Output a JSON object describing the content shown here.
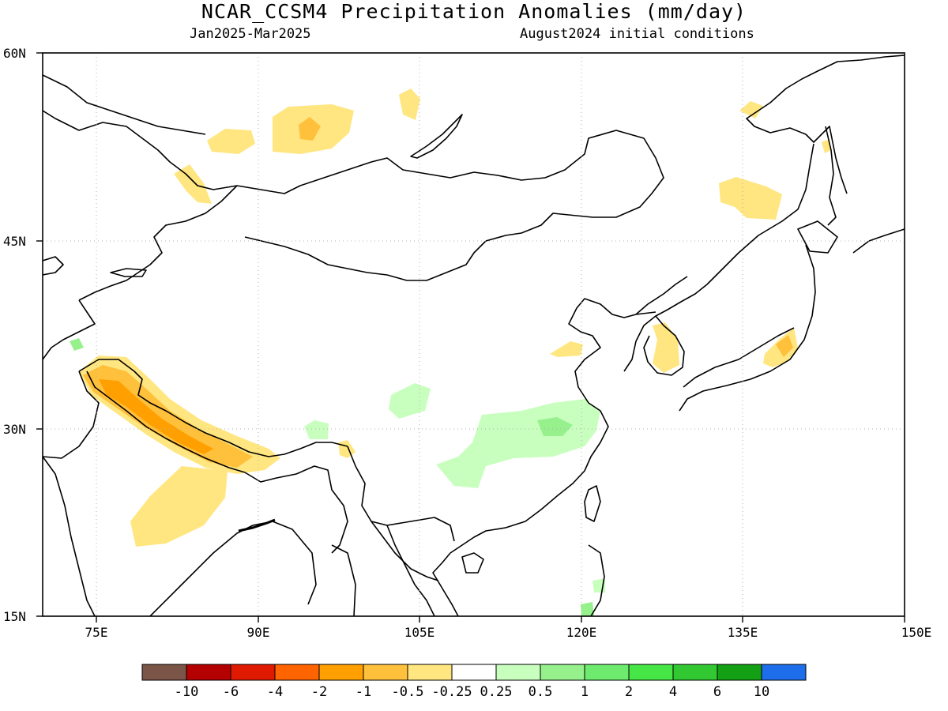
{
  "title": "NCAR_CCSM4 Precipitation Anomalies (mm/day)",
  "period": "Jan2025-Mar2025",
  "init": "August2024 initial conditions",
  "lat_labels": [
    "60N",
    "45N",
    "30N",
    "15N"
  ],
  "lon_labels": [
    "75E",
    "90E",
    "105E",
    "120E",
    "135E",
    "150E"
  ],
  "colorbar": {
    "colors": [
      "#7a5548",
      "#b40000",
      "#e01a00",
      "#ff6400",
      "#ffa000",
      "#ffc03c",
      "#ffe680",
      "#ffffff",
      "#c8ffbe",
      "#96f08c",
      "#6eeb6e",
      "#46e646",
      "#32c832",
      "#14a014",
      "#1e6eeb"
    ],
    "labels": [
      "-10",
      "-6",
      "-4",
      "-2",
      "-1",
      "-0.5",
      "-0.25",
      "0.25",
      "0.5",
      "1",
      "2",
      "4",
      "6",
      "10"
    ]
  },
  "map_colors": {
    "coast": "#000000",
    "dry_light": "#ffe680",
    "dry_mid": "#ffc03c",
    "dry_strong": "#ffa000",
    "wet_light": "#c8ffbe",
    "wet_mid": "#96f08c"
  }
}
